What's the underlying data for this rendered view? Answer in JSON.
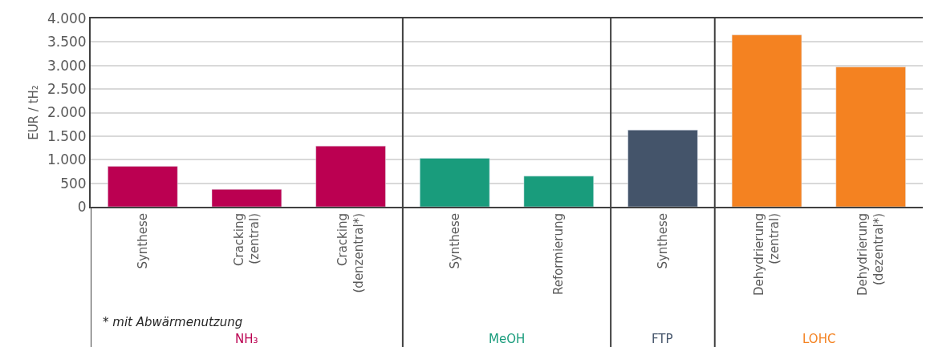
{
  "chart_data": {
    "type": "bar",
    "ylabel": "EUR / tH₂",
    "categories": [
      "Synthese",
      "Cracking\n(zentral)",
      "Cracking\n(denzentral*)",
      "Synthese",
      "Reformierung",
      "Synthese",
      "Dehydrierung\n(zentral)",
      "Dehydrierung\n(dezentral*)"
    ],
    "series": [
      {
        "name": "NH₃",
        "color": "#bb0051",
        "values": [
          860,
          370,
          1290,
          null,
          null,
          null,
          null,
          null
        ]
      },
      {
        "name": "MeOH",
        "color": "#199c7c",
        "values": [
          null,
          null,
          null,
          1030,
          650,
          null,
          null,
          null
        ]
      },
      {
        "name": "FTP",
        "color": "#44546a",
        "values": [
          null,
          null,
          null,
          null,
          null,
          1630,
          null,
          null
        ]
      },
      {
        "name": "LOHC",
        "color": "#f48221",
        "values": [
          null,
          null,
          null,
          null,
          null,
          null,
          3650,
          2970
        ]
      }
    ],
    "ylim": [
      0,
      4000
    ],
    "yticks": [
      0,
      {
        "value": 500,
        "label": "500"
      },
      {
        "value": 1000,
        "label": "1.000"
      },
      {
        "value": 1500,
        "label": "1.500"
      },
      {
        "value": 2000,
        "label": "2.000"
      },
      {
        "value": 2500,
        "label": "2.500"
      },
      {
        "value": 3000,
        "label": "3.000"
      },
      {
        "value": 3500,
        "label": "3.500"
      },
      {
        "value": 4000,
        "label": "4.000"
      }
    ],
    "grid": "y",
    "legend": false,
    "annotations": [
      "* mit Abwärmenutzung"
    ]
  }
}
